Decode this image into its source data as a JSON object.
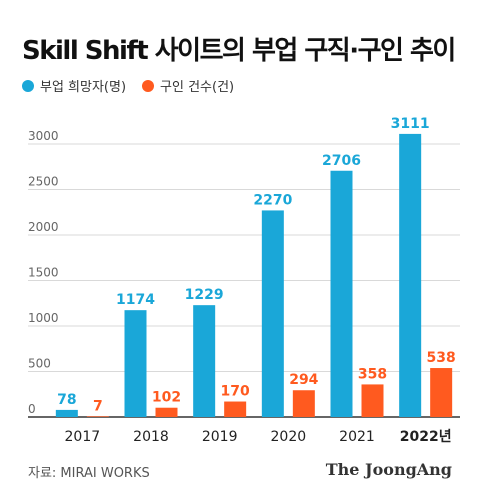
{
  "title": "Skill Shift 사이트의 부업 구직·구인 추이",
  "legend": {
    "series1": "부업 희망자(명)",
    "series2": "구인 건수(건)"
  },
  "colors": {
    "series1": "#1AA7D8",
    "series2": "#FF5A1F",
    "axis": "#333333",
    "grid": "#D9D9D9"
  },
  "source": "자료: MIRAI WORKS",
  "brand": "The JoongAng",
  "chart_data": {
    "type": "bar",
    "title": "Skill Shift 사이트의 부업 구직·구인 추이",
    "categories": [
      "2017",
      "2018",
      "2019",
      "2020",
      "2021",
      "2022년"
    ],
    "series": [
      {
        "name": "부업 희망자(명)",
        "values": [
          78,
          1174,
          1229,
          2270,
          2706,
          3111
        ]
      },
      {
        "name": "구인 건수(건)",
        "values": [
          7,
          102,
          170,
          294,
          358,
          538
        ]
      }
    ],
    "ylim": [
      0,
      3000
    ],
    "yticks": [
      0,
      500,
      1000,
      1500,
      2000,
      2500,
      3000
    ],
    "grid": true,
    "legend_position": "top-left"
  }
}
